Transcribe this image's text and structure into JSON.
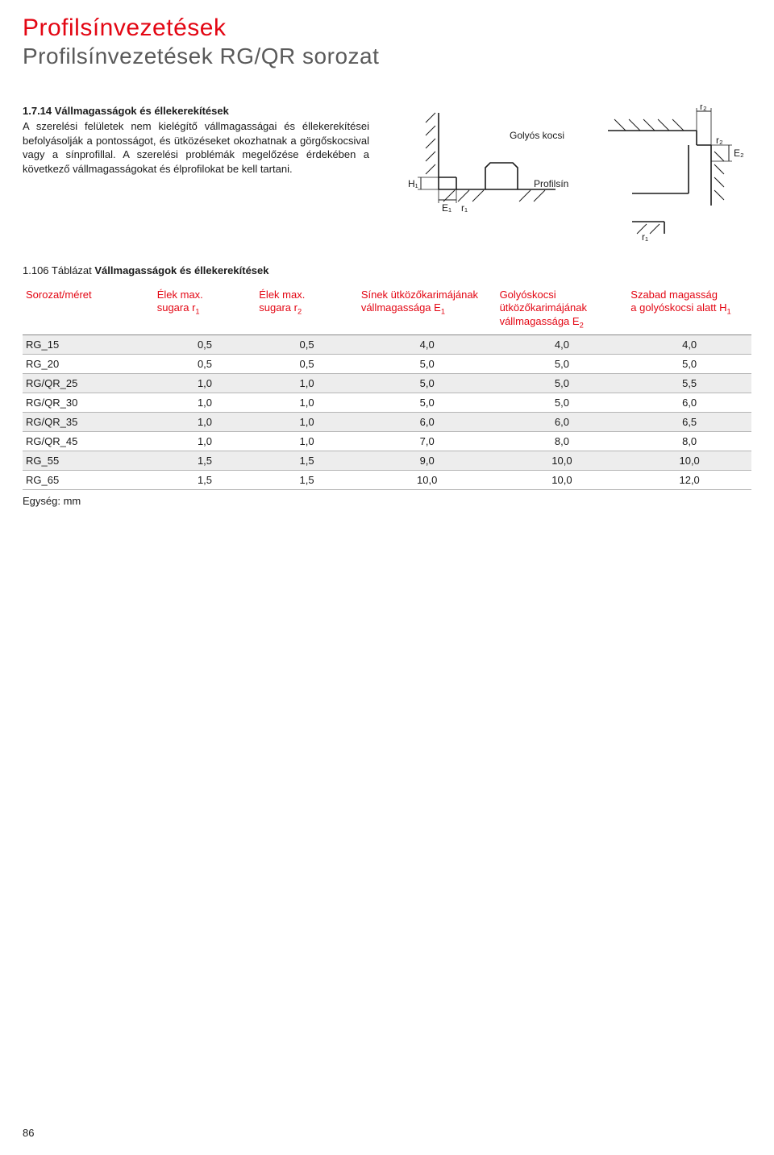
{
  "header": {
    "title": "Profilsínvezetések",
    "subtitle": "Profilsínvezetések RG/QR sorozat"
  },
  "section": {
    "heading": "1.7.14 Vállmagasságok és éllekerekítések",
    "paragraph": "A szerelési felületek nem kielégítő vállmagasságai és éllekerekítései befolyásolják a pontosságot, és ütközéseket okozhatnak a görgőskocsival vagy a sínprofillal. A szerelési problémák megelőzése érdekében a következő vállmagasságokat és élprofilokat be kell tartani."
  },
  "diagram": {
    "label_carriage": "Golyós kocsi",
    "label_rail": "Profilsín",
    "H1": "H₁",
    "E1": "E₁",
    "E2": "E₂",
    "r1": "r₁",
    "r2": "r₂",
    "colors": {
      "line": "#1a1a1a",
      "bg": "#ffffff"
    }
  },
  "table": {
    "caption_num": "1.106 Táblázat ",
    "caption_name": "Vállmagasságok és éllekerekítések",
    "columns": [
      {
        "label": "Sorozat/méret"
      },
      {
        "label_a": "Élek max.",
        "label_b": "sugara r",
        "sub": "1"
      },
      {
        "label_a": "Élek max.",
        "label_b": "sugara r",
        "sub": "2"
      },
      {
        "label_a": "Sínek ütközőkarimájának",
        "label_b": "vállmagassága E",
        "sub": "1"
      },
      {
        "label_a": "Golyóskocsi",
        "label_b": "ütközőkarimájának",
        "label_c": "vállmagassága E",
        "sub": "2"
      },
      {
        "label_a": "Szabad magasság",
        "label_b": "a golyóskocsi alatt H",
        "sub": "1"
      }
    ],
    "rows": [
      [
        "RG_15",
        "0,5",
        "0,5",
        "4,0",
        "4,0",
        "4,0"
      ],
      [
        "RG_20",
        "0,5",
        "0,5",
        "5,0",
        "5,0",
        "5,0"
      ],
      [
        "RG/QR_25",
        "1,0",
        "1,0",
        "5,0",
        "5,0",
        "5,5"
      ],
      [
        "RG/QR_30",
        "1,0",
        "1,0",
        "5,0",
        "5,0",
        "6,0"
      ],
      [
        "RG/QR_35",
        "1,0",
        "1,0",
        "6,0",
        "6,0",
        "6,5"
      ],
      [
        "RG/QR_45",
        "1,0",
        "1,0",
        "7,0",
        "8,0",
        "8,0"
      ],
      [
        "RG_55",
        "1,5",
        "1,5",
        "9,0",
        "10,0",
        "10,0"
      ],
      [
        "RG_65",
        "1,5",
        "1,5",
        "10,0",
        "10,0",
        "12,0"
      ]
    ],
    "unit": "Egység: mm",
    "col_widths": [
      "18%",
      "14%",
      "14%",
      "19%",
      "18%",
      "17%"
    ]
  },
  "page_number": "86"
}
